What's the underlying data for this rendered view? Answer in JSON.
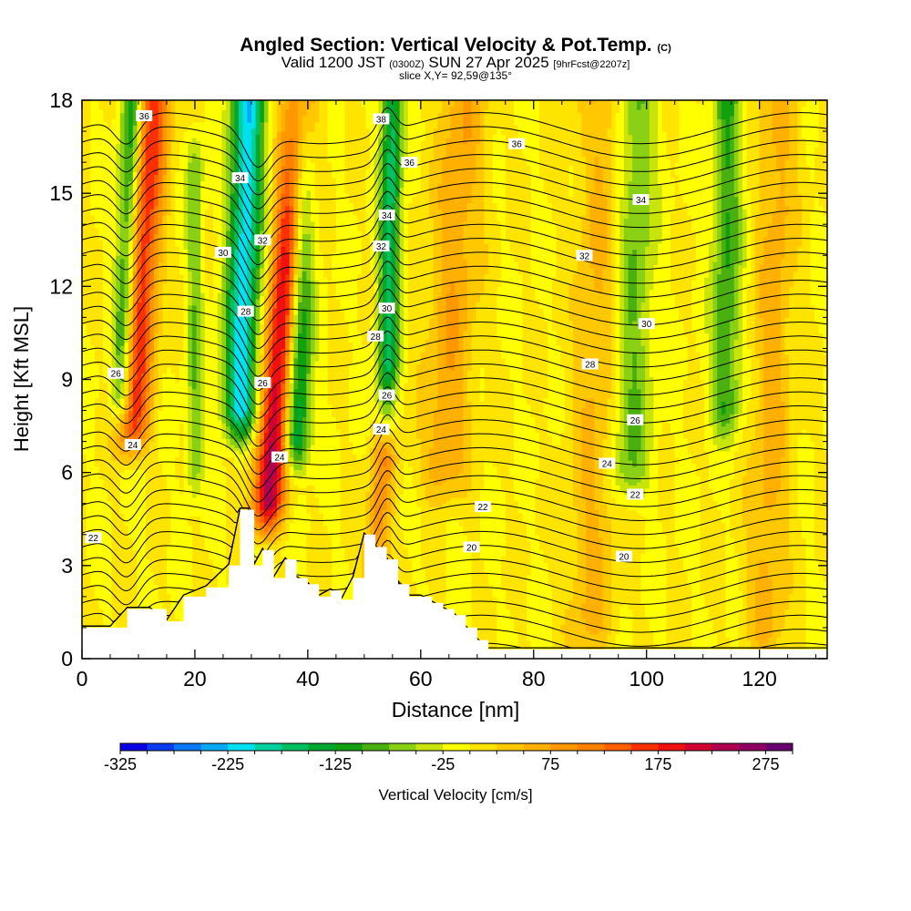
{
  "title": {
    "main": "Angled Section: Vertical Velocity & Pot.Temp.",
    "main_unit": "(C)",
    "valid_prefix": "Valid 1200 JST",
    "valid_utc": "(0300Z)",
    "valid_date": "SUN 27 Apr 2025",
    "forecast": "[9hrFcst@2207z]",
    "slice": "slice X,Y= 92,59@135°"
  },
  "chart_data": {
    "type": "heatmap",
    "xlabel": "Distance [nm]",
    "ylabel": "Height [Kft MSL]",
    "xlim": [
      0,
      132
    ],
    "ylim": [
      0,
      18
    ],
    "x_ticks": [
      0,
      20,
      40,
      60,
      80,
      100,
      120
    ],
    "y_ticks": [
      0,
      3,
      6,
      9,
      12,
      15,
      18
    ],
    "fill_variable": "Vertical Velocity [cm/s]",
    "contour_variable": "Potential temperature (C)",
    "colorbar": {
      "label": "Vertical Velocity [cm/s]",
      "ticks": [
        -325,
        -225,
        -125,
        -25,
        75,
        175,
        275
      ],
      "levels": [
        -325,
        -300,
        -275,
        -250,
        -225,
        -200,
        -175,
        -150,
        -125,
        -100,
        -75,
        -50,
        -25,
        0,
        25,
        50,
        75,
        100,
        125,
        150,
        175,
        200,
        225,
        250,
        275,
        300
      ],
      "colors": [
        "#0a00e6",
        "#0a3cf0",
        "#0a78f5",
        "#08a8f5",
        "#00e0f0",
        "#00d0a0",
        "#00c060",
        "#00a830",
        "#10a010",
        "#4ab010",
        "#8ad014",
        "#c8e40a",
        "#ffff00",
        "#ffe400",
        "#ffc800",
        "#ffb000",
        "#ff9800",
        "#ff8000",
        "#ff6000",
        "#ff3000",
        "#f01010",
        "#d00030",
        "#b00050",
        "#900060",
        "#6a0070"
      ]
    },
    "updraft_bands": [
      {
        "x": 9,
        "y0": 7.5,
        "y1": 18,
        "lean": 0.35,
        "peak": 170,
        "width": 2.0
      },
      {
        "x": 33,
        "y0": 5.0,
        "y1": 18,
        "lean": 0.45,
        "peak": 230,
        "width": 2.0
      },
      {
        "x": 52,
        "y0": 3.0,
        "y1": 8.0,
        "lean": 0.4,
        "peak": 90,
        "width": 1.5
      },
      {
        "x": 64,
        "y0": 6.0,
        "y1": 18,
        "lean": 0.3,
        "peak": 70,
        "width": 3.0
      },
      {
        "x": 90,
        "y0": 1.0,
        "y1": 18,
        "lean": 0.15,
        "peak": 55,
        "width": 3.0
      },
      {
        "x": 121,
        "y0": 1.0,
        "y1": 18,
        "lean": 0.15,
        "peak": 60,
        "width": 2.5
      }
    ],
    "downdraft_bands": [
      {
        "x": 7,
        "y0": 8.5,
        "y1": 18,
        "lean": 0.2,
        "peak": -130,
        "width": 1.3
      },
      {
        "x": 28,
        "y0": 8.0,
        "y1": 18,
        "lean": 0.15,
        "peak": -220,
        "width": 2.0
      },
      {
        "x": 38,
        "y0": 7.0,
        "y1": 18,
        "lean": 0.1,
        "peak": -170,
        "width": 1.6
      },
      {
        "x": 54,
        "y0": 8.0,
        "y1": 18,
        "lean": 0.1,
        "peak": -160,
        "width": 1.3
      },
      {
        "x": 20,
        "y0": 6.0,
        "y1": 16,
        "lean": 0.0,
        "peak": -70,
        "width": 1.0
      },
      {
        "x": 97,
        "y0": 6.0,
        "y1": 18,
        "lean": 0.1,
        "peak": -80,
        "width": 2.5
      },
      {
        "x": 114,
        "y0": 8.0,
        "y1": 18,
        "lean": 0.05,
        "peak": -100,
        "width": 1.8
      }
    ],
    "terrain": {
      "x": [
        0,
        5,
        8,
        12,
        15,
        18,
        22,
        26,
        28,
        29.5,
        30.5,
        32,
        34,
        36,
        38,
        40,
        42,
        44,
        46,
        48,
        50,
        52,
        54,
        56,
        58,
        60,
        62,
        64,
        66,
        68,
        70,
        72,
        132
      ],
      "y": [
        1.0,
        1.0,
        1.6,
        1.6,
        1.2,
        2.0,
        2.3,
        3.0,
        4.8,
        4.8,
        3.0,
        3.5,
        2.6,
        3.2,
        2.6,
        2.4,
        2.0,
        2.2,
        1.9,
        2.6,
        4.0,
        3.6,
        3.2,
        2.4,
        2.0,
        2.0,
        1.8,
        1.6,
        1.4,
        1.0,
        0.6,
        0.3,
        0.3
      ]
    },
    "theta_contour_labels": [
      {
        "text": "36",
        "x": 11,
        "y": 17.5
      },
      {
        "text": "38",
        "x": 53,
        "y": 17.4
      },
      {
        "text": "36",
        "x": 77,
        "y": 16.6
      },
      {
        "text": "36",
        "x": 58,
        "y": 16.0
      },
      {
        "text": "34",
        "x": 28,
        "y": 15.5
      },
      {
        "text": "34",
        "x": 99,
        "y": 14.8
      },
      {
        "text": "34",
        "x": 54,
        "y": 14.3
      },
      {
        "text": "32",
        "x": 32,
        "y": 13.5
      },
      {
        "text": "32",
        "x": 53,
        "y": 13.3
      },
      {
        "text": "30",
        "x": 25,
        "y": 13.1
      },
      {
        "text": "32",
        "x": 89,
        "y": 13.0
      },
      {
        "text": "30",
        "x": 54,
        "y": 11.3
      },
      {
        "text": "28",
        "x": 29,
        "y": 11.2
      },
      {
        "text": "30",
        "x": 100,
        "y": 10.8
      },
      {
        "text": "28",
        "x": 52,
        "y": 10.4
      },
      {
        "text": "26",
        "x": 6,
        "y": 9.2
      },
      {
        "text": "28",
        "x": 90,
        "y": 9.5
      },
      {
        "text": "26",
        "x": 32,
        "y": 8.9
      },
      {
        "text": "26",
        "x": 54,
        "y": 8.5
      },
      {
        "text": "26",
        "x": 98,
        "y": 7.7
      },
      {
        "text": "24",
        "x": 53,
        "y": 7.4
      },
      {
        "text": "24",
        "x": 9,
        "y": 6.9
      },
      {
        "text": "24",
        "x": 35,
        "y": 6.5
      },
      {
        "text": "24",
        "x": 93,
        "y": 6.3
      },
      {
        "text": "22",
        "x": 71,
        "y": 4.9
      },
      {
        "text": "22",
        "x": 98,
        "y": 5.3
      },
      {
        "text": "22",
        "x": 2,
        "y": 3.9
      },
      {
        "text": "20",
        "x": 69,
        "y": 3.6
      },
      {
        "text": "20",
        "x": 96,
        "y": 3.3
      }
    ]
  }
}
